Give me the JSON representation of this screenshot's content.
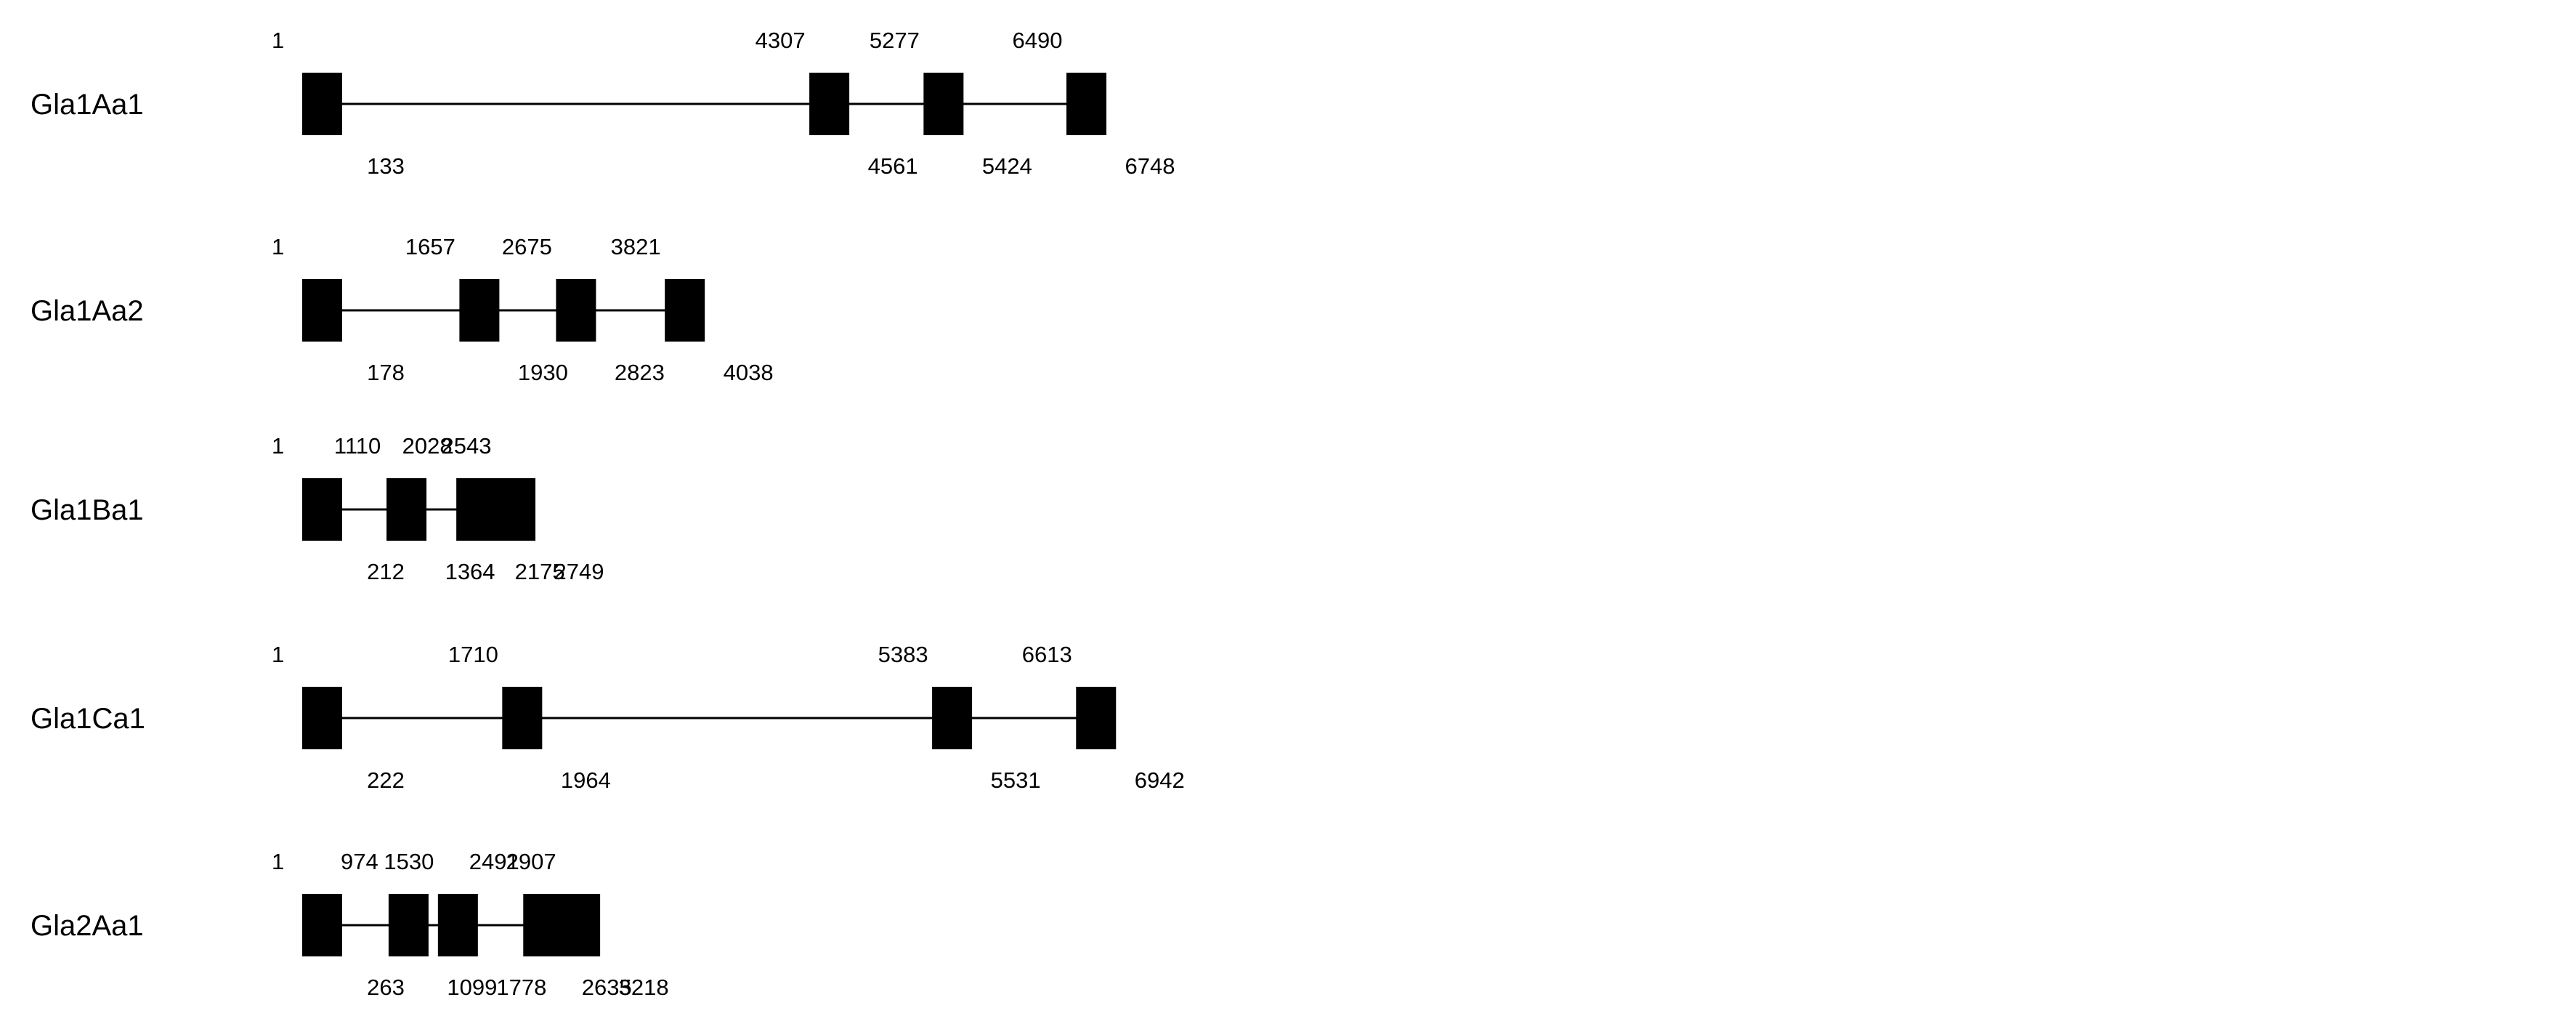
{
  "genes": [
    {
      "name": "Gla1Aa1",
      "exons": [
        {
          "start": "1",
          "end": "133"
        },
        {
          "start": "4307",
          "end": "4561"
        },
        {
          "start": "5277",
          "end": "5424"
        },
        {
          "start": "6490",
          "end": "6748"
        }
      ]
    },
    {
      "name": "Gla1Aa2",
      "exons": [
        {
          "start": "1",
          "end": "178"
        },
        {
          "start": "1657",
          "end": "1930"
        },
        {
          "start": "2675",
          "end": "2823"
        },
        {
          "start": "3821",
          "end": "4038"
        }
      ]
    },
    {
      "name": "Gla1Ba1",
      "exons": [
        {
          "start": "1",
          "end": "212"
        },
        {
          "start": "1110",
          "end": "1364"
        },
        {
          "start": "2028",
          "end": "2175"
        },
        {
          "start": "2543",
          "end": "2749"
        }
      ]
    },
    {
      "name": "Gla1Ca1",
      "exons": [
        {
          "start": "1",
          "end": "222"
        },
        {
          "start": "1710",
          "end": "1964"
        },
        {
          "start": "5383",
          "end": "5531"
        },
        {
          "start": "6613",
          "end": "6942"
        }
      ]
    },
    {
      "name": "Gla2Aa1",
      "exons": [
        {
          "start": "1",
          "end": "263"
        },
        {
          "start": "974",
          "end": "1099"
        },
        {
          "start": "1530",
          "end": "1778"
        },
        {
          "start": "2491",
          "end": "2635"
        },
        {
          "start": "2907",
          "end": "3218"
        }
      ]
    }
  ]
}
